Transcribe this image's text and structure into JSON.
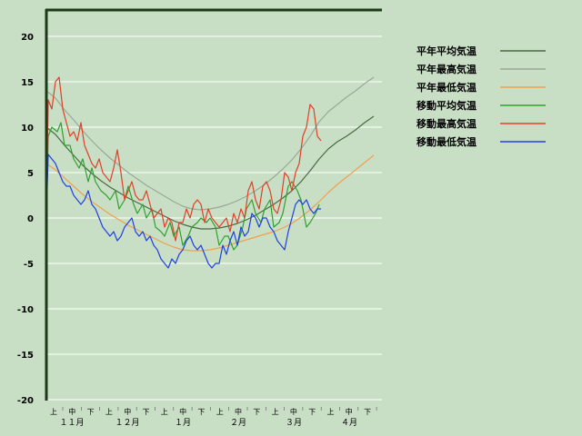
{
  "chart_data": {
    "type": "line",
    "ylim": [
      -20,
      23
    ],
    "yticks": [
      20,
      15,
      10,
      5,
      0,
      -5,
      -10,
      -15,
      -20
    ],
    "grid": true,
    "legend_position": "top-right",
    "period_labels": [
      "上",
      "中",
      "下",
      "上",
      "中",
      "下",
      "上",
      "中",
      "下",
      "上",
      "中",
      "下",
      "上",
      "中",
      "下",
      "上",
      "中",
      "下"
    ],
    "month_labels": [
      "１１月",
      "１２月",
      "１月",
      "２月",
      "３月",
      "４月"
    ],
    "series": [
      {
        "name": "平年平均気温",
        "color": "#4a6a44",
        "x": [
          0,
          5,
          10,
          15,
          20,
          25,
          30,
          35,
          40,
          45,
          50,
          55,
          60,
          65,
          70,
          75,
          80,
          85,
          90,
          95,
          100,
          105,
          110,
          115,
          120,
          125,
          130,
          135,
          140,
          145,
          150,
          155,
          160,
          165,
          170,
          175,
          180
        ],
        "y": [
          10,
          9.2,
          8,
          6.9,
          5.8,
          4.9,
          4.1,
          3.4,
          2.8,
          2.2,
          1.7,
          1.2,
          0.7,
          0.2,
          -0.3,
          -0.7,
          -1.0,
          -1.2,
          -1.2,
          -1.1,
          -0.9,
          -0.6,
          -0.2,
          0.3,
          0.9,
          1.5,
          2.2,
          3.0,
          4.0,
          5.2,
          6.5,
          7.6,
          8.4,
          9.0,
          9.7,
          10.5,
          11.2
        ]
      },
      {
        "name": "平年最高気温",
        "color": "#9aa898",
        "x": [
          0,
          5,
          10,
          15,
          20,
          25,
          30,
          35,
          40,
          45,
          50,
          55,
          60,
          65,
          70,
          75,
          80,
          85,
          90,
          95,
          100,
          105,
          110,
          115,
          120,
          125,
          130,
          135,
          140,
          145,
          150,
          155,
          160,
          165,
          170,
          175,
          180
        ],
        "y": [
          14,
          13.2,
          11.9,
          10.8,
          9.6,
          8.5,
          7.5,
          6.6,
          5.8,
          5.0,
          4.3,
          3.6,
          3.0,
          2.4,
          1.8,
          1.3,
          1.0,
          0.9,
          1.0,
          1.2,
          1.5,
          1.9,
          2.4,
          3.0,
          3.7,
          4.5,
          5.4,
          6.4,
          7.6,
          9.0,
          10.6,
          11.7,
          12.5,
          13.3,
          14.0,
          14.8,
          15.5
        ]
      },
      {
        "name": "平年最低気温",
        "color": "#f0a050",
        "x": [
          0,
          5,
          10,
          15,
          20,
          25,
          30,
          35,
          40,
          45,
          50,
          55,
          60,
          65,
          70,
          75,
          80,
          85,
          90,
          95,
          100,
          105,
          110,
          115,
          120,
          125,
          130,
          135,
          140,
          145,
          150,
          155,
          160,
          165,
          170,
          175,
          180
        ],
        "y": [
          6,
          5.3,
          4.4,
          3.5,
          2.6,
          1.8,
          1.1,
          0.4,
          -0.2,
          -0.8,
          -1.3,
          -1.8,
          -2.3,
          -2.8,
          -3.2,
          -3.5,
          -3.6,
          -3.6,
          -3.5,
          -3.3,
          -3.0,
          -2.7,
          -2.4,
          -2.1,
          -1.8,
          -1.5,
          -1.1,
          -0.6,
          0.1,
          0.9,
          1.8,
          2.8,
          3.7,
          4.5,
          5.3,
          6.1,
          6.9
        ]
      },
      {
        "name": "移動平均気温",
        "color": "#30a030",
        "x": [
          0,
          1,
          3,
          6,
          8,
          10,
          13,
          15,
          18,
          20,
          23,
          25,
          27,
          30,
          33,
          35,
          38,
          40,
          43,
          45,
          48,
          50,
          53,
          55,
          58,
          60,
          63,
          65,
          68,
          70,
          73,
          75,
          78,
          80,
          83,
          85,
          88,
          90,
          93,
          95,
          98,
          100,
          103,
          105,
          108,
          110,
          113,
          115,
          118,
          120,
          123,
          125,
          128,
          130,
          133,
          135,
          138,
          140,
          143,
          145,
          148,
          150
        ],
        "y": [
          0,
          9,
          10,
          9.5,
          10.5,
          8,
          8,
          6.5,
          5.5,
          6.5,
          4,
          5.5,
          4,
          3,
          2.5,
          2,
          3,
          1,
          2,
          3.5,
          1.5,
          0.5,
          1.5,
          0,
          1,
          -1,
          -1.5,
          -2,
          -0.5,
          -2,
          -1,
          -3,
          -2,
          -1,
          -0.5,
          0,
          -0.5,
          0,
          -1,
          -3,
          -2,
          -2,
          -3.5,
          -3,
          -1,
          1,
          2,
          0.5,
          -0.5,
          1,
          2,
          -1,
          -0.5,
          0.5,
          3.5,
          4,
          3,
          2,
          -1,
          -0.5,
          0.5,
          1.5
        ]
      },
      {
        "name": "移動最高気温",
        "color": "#e04028",
        "x": [
          0,
          1,
          3,
          5,
          7,
          9,
          11,
          13,
          15,
          17,
          19,
          21,
          23,
          25,
          27,
          29,
          31,
          33,
          35,
          37,
          39,
          41,
          43,
          45,
          47,
          49,
          51,
          53,
          55,
          57,
          59,
          61,
          63,
          65,
          67,
          69,
          71,
          73,
          75,
          77,
          79,
          81,
          83,
          85,
          87,
          89,
          91,
          93,
          95,
          97,
          99,
          101,
          103,
          105,
          107,
          109,
          111,
          113,
          115,
          117,
          119,
          121,
          123,
          125,
          127,
          129,
          131,
          133,
          135,
          137,
          139,
          141,
          143,
          145,
          147,
          149,
          151
        ],
        "y": [
          0,
          13,
          12,
          15,
          15.5,
          12,
          10.5,
          9,
          9.5,
          8.5,
          10.5,
          8,
          7,
          6,
          5.5,
          6.5,
          5,
          4.5,
          4,
          5.5,
          7.5,
          5,
          2,
          3,
          4,
          2.5,
          2,
          2,
          3,
          1.5,
          0,
          0.5,
          1,
          -1,
          0,
          -0.5,
          -2.5,
          -0.5,
          -0.5,
          1,
          0,
          1.5,
          2,
          1.5,
          -0.5,
          1,
          0,
          -0.5,
          -1,
          -0.5,
          0,
          -1.5,
          0.5,
          -0.5,
          1,
          0,
          3,
          4,
          2,
          1,
          3.5,
          4,
          3,
          1,
          0.5,
          2,
          5,
          4.5,
          3,
          5,
          6,
          9,
          10,
          12.5,
          12,
          9,
          8.5
        ]
      },
      {
        "name": "移動最低気温",
        "color": "#2040e0",
        "x": [
          0,
          1,
          3,
          5,
          7,
          9,
          11,
          13,
          15,
          17,
          19,
          21,
          23,
          25,
          27,
          29,
          31,
          33,
          35,
          37,
          39,
          41,
          43,
          45,
          47,
          49,
          51,
          53,
          55,
          57,
          59,
          61,
          63,
          65,
          67,
          69,
          71,
          73,
          75,
          77,
          79,
          81,
          83,
          85,
          87,
          89,
          91,
          93,
          95,
          97,
          99,
          101,
          103,
          105,
          107,
          109,
          111,
          113,
          115,
          117,
          119,
          121,
          123,
          125,
          127,
          129,
          131,
          133,
          135,
          137,
          139,
          141,
          143,
          145,
          147,
          149,
          151
        ],
        "y": [
          0,
          7,
          6.5,
          6,
          5,
          4,
          3.5,
          3.5,
          2.5,
          2,
          1.5,
          2,
          3,
          1.5,
          1,
          0,
          -1,
          -1.5,
          -2,
          -1.5,
          -2.5,
          -2,
          -1,
          -0.5,
          0,
          -1.5,
          -2,
          -1.5,
          -2.5,
          -2,
          -3,
          -3.5,
          -4.5,
          -5,
          -5.5,
          -4.5,
          -5,
          -4,
          -3.5,
          -2.5,
          -2,
          -3,
          -3.5,
          -3,
          -4,
          -5,
          -5.5,
          -5,
          -5,
          -3,
          -4,
          -2.5,
          -1.5,
          -3,
          -1,
          -2,
          -1.5,
          0.5,
          0,
          -1,
          0,
          0,
          -1,
          -1.5,
          -2.5,
          -3,
          -3.5,
          -1.5,
          0,
          1.5,
          2,
          1.5,
          2,
          1,
          0.5,
          1,
          1
        ]
      }
    ]
  }
}
